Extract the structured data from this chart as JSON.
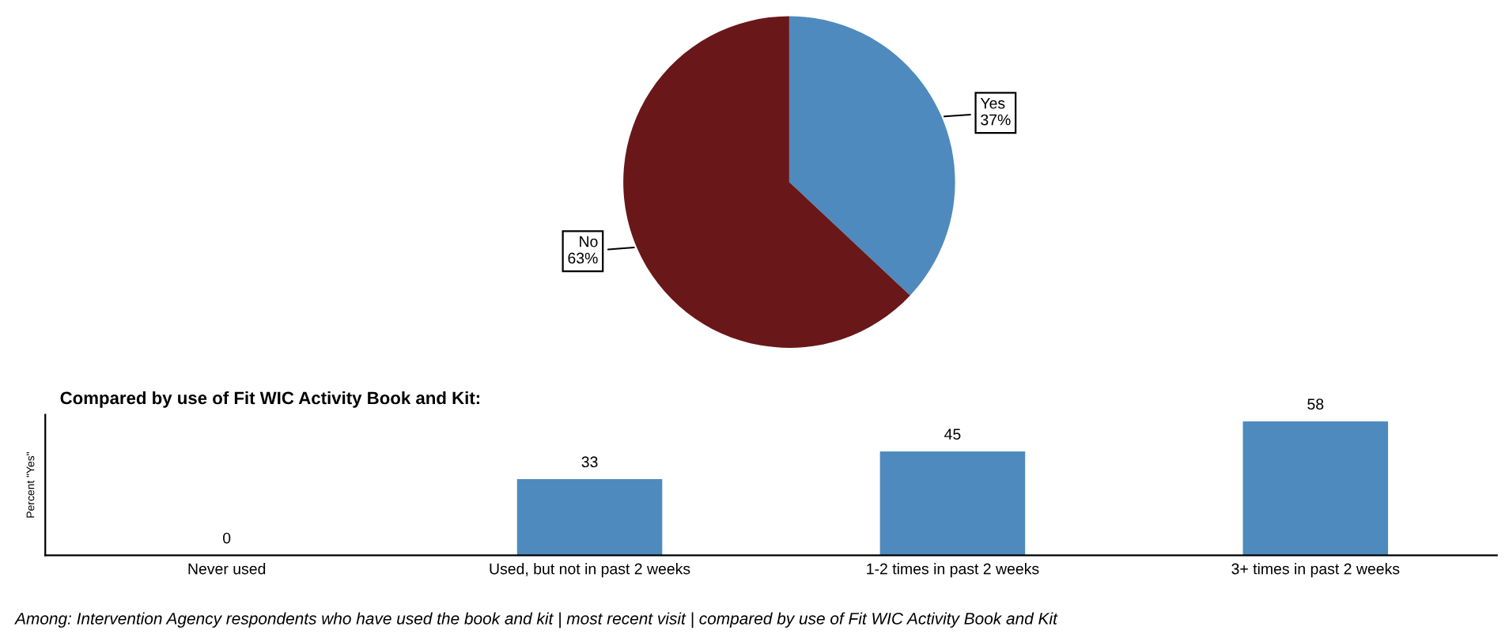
{
  "chart_data": [
    {
      "type": "pie",
      "categories": [
        "Yes",
        "No"
      ],
      "values": [
        37,
        63
      ],
      "value_labels": [
        "37%",
        "63%"
      ],
      "colors": [
        "#4e8abe",
        "#6a1719"
      ]
    },
    {
      "type": "bar",
      "title": "Compared by use of Fit WIC Activity Book and Kit:",
      "ylabel": "Percent \"Yes\"",
      "categories": [
        "Never used",
        "Used, but not in past 2 weeks",
        "1-2 times in past 2 weeks",
        "3+ times in past 2 weeks"
      ],
      "values": [
        0,
        33,
        45,
        58
      ],
      "color": "#4e8abe",
      "data_labels": true,
      "tick_labels": "x",
      "grid": false,
      "legend": false,
      "annotations": [
        "Among: Intervention Agency respondents who have used the book and kit | most recent visit | compared by use of Fit WIC Activity Book and Kit"
      ]
    }
  ]
}
